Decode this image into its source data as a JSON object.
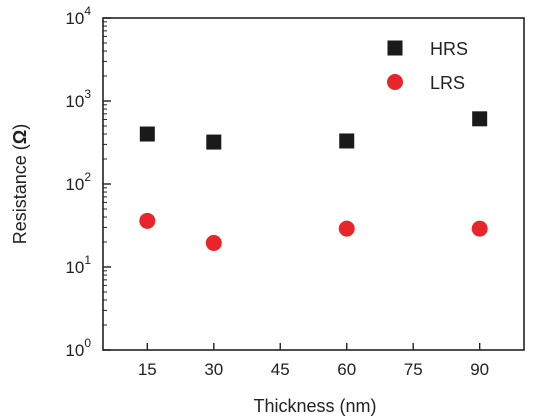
{
  "chart_data": {
    "type": "scatter",
    "title": "",
    "xlabel": "Thickness (nm)",
    "ylabel": "Resistance (Ω)",
    "ylabel_prefix": "Resistance (",
    "ylabel_symbol": "Ω",
    "ylabel_suffix": ")",
    "xlim": [
      5,
      100
    ],
    "ylim": [
      1,
      10000
    ],
    "yscale": "log",
    "x_ticks": [
      15,
      30,
      45,
      60,
      75,
      90
    ],
    "y_ticks": [
      {
        "value": 1,
        "base": "10",
        "exp": "0"
      },
      {
        "value": 10,
        "base": "10",
        "exp": "1"
      },
      {
        "value": 100,
        "base": "10",
        "exp": "2"
      },
      {
        "value": 1000,
        "base": "10",
        "exp": "3"
      },
      {
        "value": 10000,
        "base": "10",
        "exp": "4"
      }
    ],
    "grid": false,
    "legend_position": "top-right",
    "series": [
      {
        "name": "HRS",
        "marker": "square",
        "color": "#1a1a1a",
        "x": [
          15,
          30,
          60,
          90
        ],
        "y": [
          400,
          320,
          330,
          610
        ]
      },
      {
        "name": "LRS",
        "marker": "circle",
        "color": "#e8252b",
        "x": [
          15,
          30,
          60,
          90
        ],
        "y": [
          36,
          19.5,
          29,
          29
        ]
      }
    ]
  }
}
